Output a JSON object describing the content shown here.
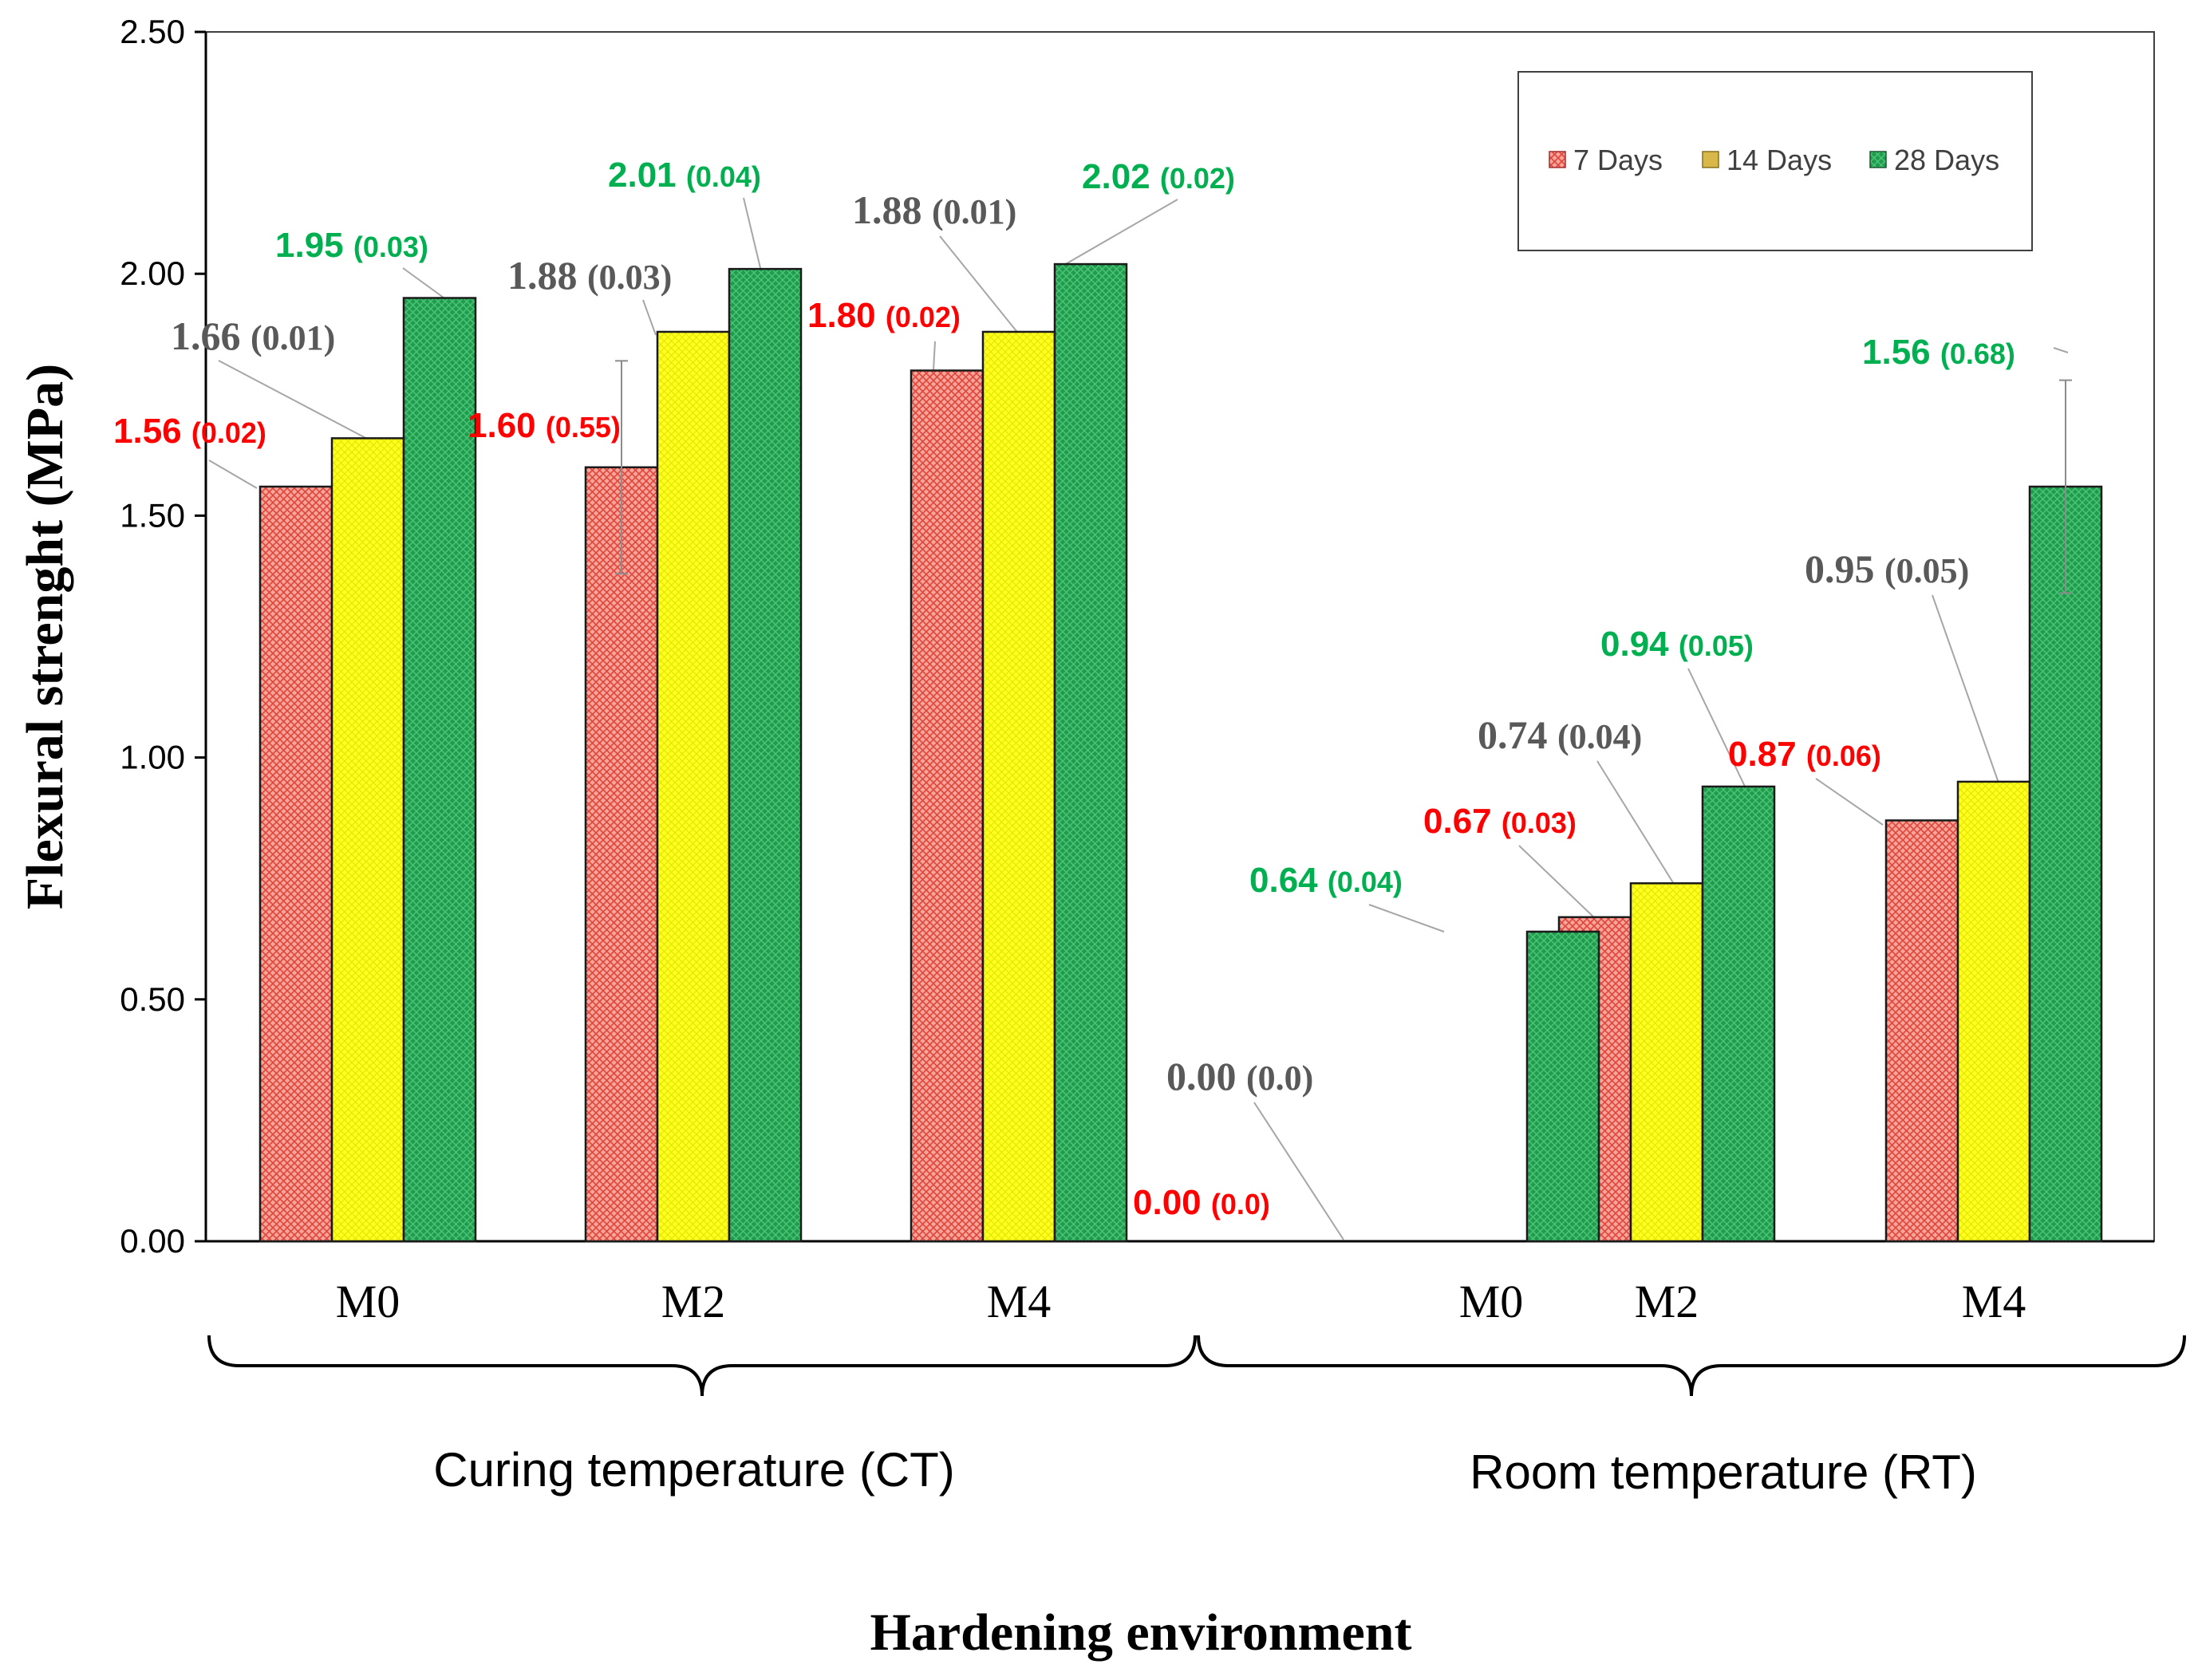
{
  "chart_data": {
    "type": "bar",
    "title": "",
    "ylabel": "Flexural strenght (MPa)",
    "xlabel": "Hardening environment",
    "ylim": [
      0,
      2.5
    ],
    "yticks": [
      "0.00",
      "0.50",
      "1.00",
      "1.50",
      "2.00",
      "2.50"
    ],
    "groups": [
      {
        "name": "Curing temperature (CT)",
        "categories": [
          "M0",
          "M2",
          "M4"
        ]
      },
      {
        "name": "Room temperature (RT)",
        "categories": [
          "M0",
          "M2",
          "M4"
        ]
      }
    ],
    "categories": [
      "M0",
      "M2",
      "M4",
      "M0",
      "M2",
      "M4"
    ],
    "series": [
      {
        "name": "7 Days",
        "color": "#f08080",
        "label_color": "#ff0000",
        "values": [
          1.56,
          1.6,
          1.8,
          0.0,
          0.67,
          0.87
        ],
        "labels": [
          "1.56",
          "1.60",
          "1.80",
          "0.00",
          "0.67",
          "0.87"
        ],
        "sd": [
          "(0.02)",
          "(0.55)",
          "(0.02)",
          "(0.0)",
          "(0.03)",
          "(0.06)"
        ],
        "err": [
          0,
          0.22,
          0,
          0,
          0,
          0
        ]
      },
      {
        "name": "14 Days",
        "color": "#ffff33",
        "label_color": "#595959",
        "values": [
          1.66,
          1.88,
          1.88,
          0.0,
          0.74,
          0.95
        ],
        "labels": [
          "1.66",
          "1.88",
          "1.88",
          "0.00",
          "0.74",
          "0.95"
        ],
        "sd": [
          "(0.01)",
          "(0.03)",
          "(0.01)",
          "(0.0)",
          "(0.04)",
          "(0.05)"
        ],
        "err": [
          0,
          0,
          0,
          0,
          0,
          0
        ]
      },
      {
        "name": "28 Days",
        "color": "#1e9e4a",
        "label_color": "#00b050",
        "values": [
          1.95,
          2.01,
          2.02,
          0.64,
          0.94,
          1.56
        ],
        "labels": [
          "1.95",
          "2.01",
          "2.02",
          "0.64",
          "0.94",
          "1.56"
        ],
        "sd": [
          "(0.03)",
          "(0.04)",
          "(0.02)",
          "(0.04)",
          "(0.05)",
          "(0.68)"
        ],
        "err": [
          0,
          0,
          0,
          0,
          0,
          0.22
        ]
      }
    ],
    "legend": {
      "position": "top-right",
      "entries": [
        "7 Days",
        "14 Days",
        "28 Days"
      ]
    },
    "grid": false
  }
}
